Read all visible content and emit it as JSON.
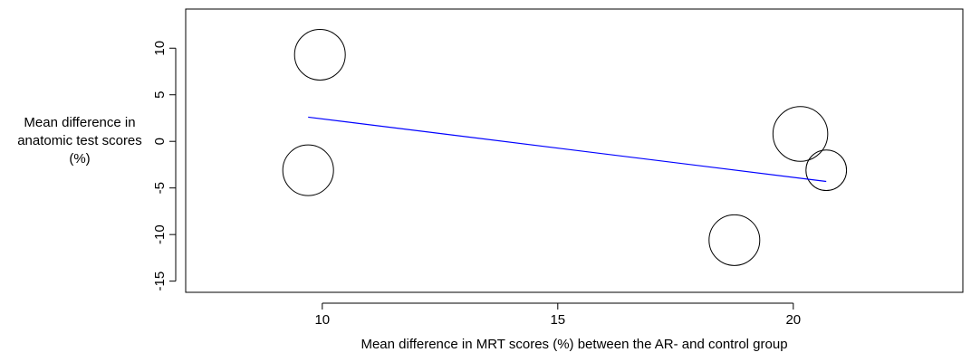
{
  "chart_data": {
    "type": "scatter",
    "xlabel": "Mean difference in MRT scores (%) between the AR- and control group",
    "ylabel_lines": [
      "Mean difference in",
      "anatomic test scores",
      "(%)"
    ],
    "xlim": [
      7.1,
      23.6
    ],
    "ylim": [
      -16.2,
      14.2
    ],
    "x_ticks": [
      10,
      15,
      20
    ],
    "y_ticks": [
      -15,
      -10,
      -5,
      0,
      5,
      10
    ],
    "x_tick_labels": [
      "10",
      "15",
      "20"
    ],
    "y_tick_labels": [
      "-15",
      "-10",
      "-5",
      "0",
      "5",
      "10"
    ],
    "grid": false,
    "legend": false,
    "marker": "open circle (bubble)",
    "points": [
      {
        "x": 9.95,
        "y": 9.3,
        "r": 1.0
      },
      {
        "x": 9.7,
        "y": -3.1,
        "r": 1.0
      },
      {
        "x": 20.15,
        "y": 0.8,
        "r": 1.08
      },
      {
        "x": 20.7,
        "y": -3.1,
        "r": 0.8
      },
      {
        "x": 18.75,
        "y": -10.6,
        "r": 1.0
      }
    ],
    "regression_line": {
      "x": [
        9.7,
        20.7
      ],
      "y": [
        2.6,
        -4.3
      ],
      "color": "#0000ff"
    }
  }
}
